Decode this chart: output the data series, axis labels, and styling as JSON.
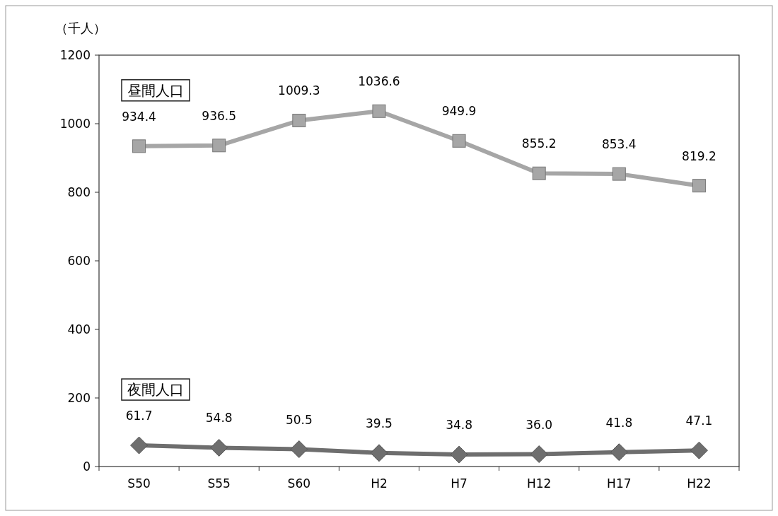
{
  "chart_data": {
    "type": "line",
    "ylabel": "（千人）",
    "categories": [
      "S50",
      "S55",
      "S60",
      "H2",
      "H7",
      "H12",
      "H17",
      "H22"
    ],
    "series": [
      {
        "name": "昼間人口",
        "color": "#a6a6a6",
        "marker": "square",
        "values": [
          934.4,
          936.5,
          1009.3,
          1036.6,
          949.9,
          855.2,
          853.4,
          819.2
        ],
        "value_labels": [
          "934.4",
          "936.5",
          "1009.3",
          "1036.6",
          "949.9",
          "855.2",
          "853.4",
          "819.2"
        ]
      },
      {
        "name": "夜間人口",
        "color": "#6e6e6e",
        "marker": "diamond",
        "values": [
          61.7,
          54.8,
          50.5,
          39.5,
          34.8,
          36.0,
          41.8,
          47.1
        ],
        "value_labels": [
          "61.7",
          "54.8",
          "50.5",
          "39.5",
          "34.8",
          "36.0",
          "41.8",
          "47.1"
        ]
      }
    ],
    "ylim": [
      0,
      1200
    ],
    "yticks": [
      0,
      200,
      400,
      600,
      800,
      1000,
      1200
    ]
  }
}
